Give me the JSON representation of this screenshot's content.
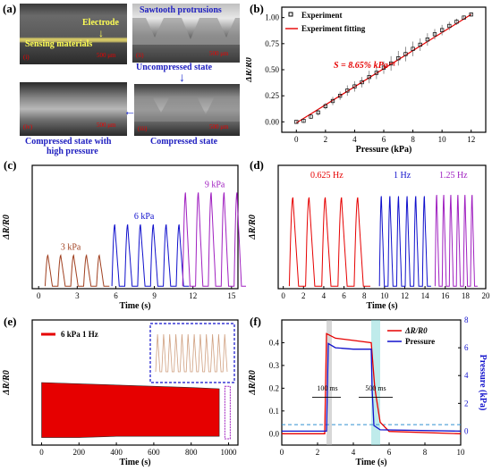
{
  "panel_labels": {
    "a": "(a)",
    "b": "(b)",
    "c": "(c)",
    "d": "(d)",
    "e": "(e)",
    "f": "(f)"
  },
  "micrographs": {
    "labels": {
      "electrode": "Electrode",
      "sensing": "Sensing materials",
      "sawtooth": "Sawtooth protrusions",
      "uncompressed": "Uncompressed state",
      "compressed": "Compressed state",
      "compressed_high_1": "Compressed state with",
      "compressed_high_2": "high pressure"
    },
    "scale_bar": "500 μm",
    "sub_labels": [
      "(i)",
      "(ii)",
      "(iii)",
      "(iv)"
    ]
  },
  "colors": {
    "red": "#e60000",
    "blue": "#1010cc",
    "purple": "#a020c0",
    "brown": "#a04020",
    "sensing_yellow": "#ffff55"
  },
  "chart_data": [
    {
      "panel": "b",
      "type": "scatter",
      "xlabel": "Pressure (kPa)",
      "ylabel": "ΔR/R0",
      "xlim": [
        -1,
        13
      ],
      "ylim": [
        -0.1,
        1.1
      ],
      "xticks": [
        0,
        2,
        4,
        6,
        8,
        10,
        12
      ],
      "yticks": [
        0.0,
        0.25,
        0.5,
        0.75,
        1.0
      ],
      "legend": [
        "Experiment",
        "Experiment fitting"
      ],
      "annotation": "S = 8.65% kPa⁻¹",
      "series": [
        {
          "name": "Experiment",
          "x": [
            0,
            0.5,
            1,
            1.5,
            2,
            2.5,
            3,
            3.5,
            4,
            4.5,
            5,
            5.5,
            6,
            6.5,
            7,
            7.5,
            8,
            8.5,
            9,
            9.5,
            10,
            10.5,
            11,
            11.5,
            12
          ],
          "y": [
            0,
            0.01,
            0.05,
            0.09,
            0.15,
            0.2,
            0.25,
            0.3,
            0.34,
            0.38,
            0.43,
            0.47,
            0.52,
            0.56,
            0.61,
            0.65,
            0.7,
            0.74,
            0.79,
            0.84,
            0.88,
            0.92,
            0.96,
            1.0,
            1.03
          ],
          "err": [
            0.01,
            0.02,
            0.02,
            0.03,
            0.03,
            0.04,
            0.04,
            0.05,
            0.05,
            0.05,
            0.06,
            0.06,
            0.06,
            0.07,
            0.07,
            0.07,
            0.07,
            0.06,
            0.06,
            0.05,
            0.05,
            0.04,
            0.03,
            0.02,
            0.02
          ]
        },
        {
          "name": "Experiment fitting",
          "x": [
            0,
            12
          ],
          "y": [
            -0.01,
            1.03
          ]
        }
      ]
    },
    {
      "panel": "c",
      "type": "line",
      "xlabel": "Time (s)",
      "ylabel": "ΔR/R0",
      "xlim": [
        -0.5,
        15.5
      ],
      "ylim": [
        0,
        1
      ],
      "xticks": [
        0,
        3,
        6,
        9,
        12,
        15
      ],
      "annotations": [
        "3 kPa",
        "6 kPa",
        "9 kPa"
      ],
      "segments": [
        {
          "label": "3 kPa",
          "start": 0.5,
          "period": 1,
          "count": 5,
          "peak": 0.27
        },
        {
          "label": "6 kPa",
          "start": 5.7,
          "period": 1,
          "count": 6,
          "peak": 0.52
        },
        {
          "label": "9 kPa",
          "start": 11.2,
          "period": 1,
          "count": 6,
          "peak": 0.78
        }
      ]
    },
    {
      "panel": "d",
      "type": "line",
      "xlabel": "Time (s)",
      "ylabel": "ΔR/R0",
      "xlim": [
        -0.5,
        20
      ],
      "ylim": [
        0,
        1
      ],
      "xticks": [
        0,
        2,
        4,
        6,
        8,
        10,
        12,
        14,
        16,
        18,
        20
      ],
      "annotations": [
        "0.625 Hz",
        "1 Hz",
        "1.25 Hz"
      ],
      "segments": [
        {
          "label": "0.625 Hz",
          "start": 0.6,
          "period": 1.6,
          "count": 5,
          "peak": 0.74
        },
        {
          "label": "1 Hz",
          "start": 9.5,
          "period": 0.85,
          "count": 6,
          "peak": 0.75
        },
        {
          "label": "1.25 Hz",
          "start": 15.0,
          "period": 0.7,
          "count": 6,
          "peak": 0.76
        }
      ]
    },
    {
      "panel": "e",
      "type": "area",
      "xlabel": "Time (s)",
      "ylabel": "ΔR/R0",
      "xlim": [
        -50,
        1050
      ],
      "ylim": [
        0,
        1
      ],
      "xticks": [
        0,
        200,
        400,
        600,
        800,
        1000
      ],
      "legend": [
        "6 kPa 1 Hz"
      ],
      "envelope": {
        "x": [
          0,
          200,
          400,
          600,
          800,
          950
        ],
        "top": [
          0.5,
          0.49,
          0.48,
          0.47,
          0.46,
          0.45
        ],
        "bottom": [
          0.06,
          0.06,
          0.07,
          0.07,
          0.07,
          0.07
        ]
      },
      "inset_peaks": 12
    },
    {
      "panel": "f",
      "type": "line",
      "xlabel": "Time (s)",
      "ylabel": "ΔR/R0",
      "ylabel_right": "Pressure (kPa)",
      "xlim": [
        0,
        10
      ],
      "ylim": [
        -0.05,
        0.5
      ],
      "ylim_right": [
        -1,
        8
      ],
      "xticks": [
        0,
        2,
        4,
        6,
        8,
        10
      ],
      "yticks": [
        0.0,
        0.1,
        0.2,
        0.3,
        0.4
      ],
      "yticks_right": [
        0,
        2,
        4,
        6,
        8
      ],
      "legend": [
        "ΔR/R0",
        "Pressure"
      ],
      "annotations": [
        "100 ms",
        "500 ms"
      ],
      "series": [
        {
          "name": "ΔR/R0",
          "x": [
            0,
            2.4,
            2.5,
            3,
            4,
            5,
            5.2,
            5.5,
            6,
            10
          ],
          "y": [
            0,
            0,
            0.44,
            0.42,
            0.41,
            0.4,
            0.2,
            0.05,
            0.01,
            0
          ]
        },
        {
          "name": "Pressure",
          "x": [
            0,
            2.5,
            2.6,
            3,
            4,
            5,
            5.05,
            5.15,
            5.5,
            10
          ],
          "y": [
            0,
            0,
            6.3,
            6.0,
            5.9,
            5.9,
            3,
            0.4,
            0.1,
            0
          ]
        }
      ]
    }
  ]
}
